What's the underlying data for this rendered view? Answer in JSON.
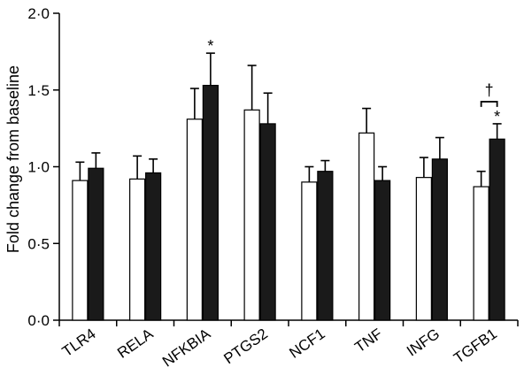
{
  "chart_data": {
    "type": "bar",
    "title": "",
    "xlabel": "",
    "ylabel": "Fold change from baseline",
    "ylim": [
      0,
      2.0
    ],
    "yticks": [
      0,
      0.5,
      1.0,
      1.5,
      2.0
    ],
    "ytick_labels": [
      "0·0",
      "0·5",
      "1·0",
      "1·5",
      "2·0"
    ],
    "grid": false,
    "legend": "none",
    "categories": [
      "TLR4",
      "RELA",
      "NFKBIA",
      "PTGS2",
      "NCF1",
      "TNF",
      "INFG",
      "TGFB1"
    ],
    "series": [
      {
        "fill": "#ffffff",
        "values": [
          0.91,
          0.92,
          1.31,
          1.37,
          0.9,
          1.22,
          0.93,
          0.87
        ],
        "errors": [
          0.12,
          0.15,
          0.2,
          0.29,
          0.1,
          0.16,
          0.13,
          0.1
        ]
      },
      {
        "fill": "#1a1a1a",
        "values": [
          0.99,
          0.96,
          1.53,
          1.28,
          0.97,
          0.91,
          1.05,
          1.18
        ],
        "errors": [
          0.1,
          0.09,
          0.21,
          0.2,
          0.07,
          0.09,
          0.14,
          0.1
        ]
      }
    ],
    "annotations": [
      {
        "category": "NFKBIA",
        "series": 1,
        "text": "*"
      },
      {
        "category": "TGFB1",
        "series": 1,
        "text": "*"
      },
      {
        "category": "TGFB1",
        "type": "bracket",
        "text": "†"
      }
    ]
  }
}
